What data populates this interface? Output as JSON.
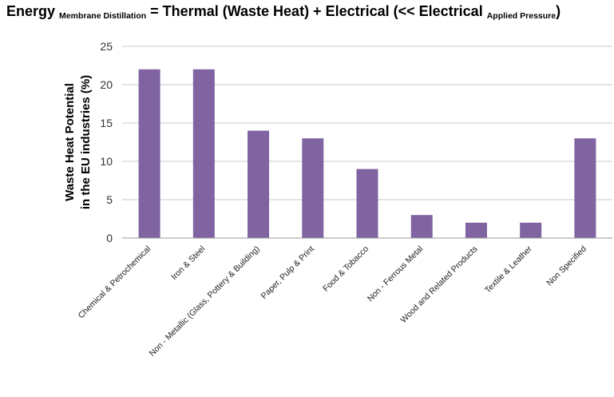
{
  "title": {
    "part1": "Energy",
    "sub1": "Membrane Distillation",
    "part2": "= Thermal (Waste Heat) + Electrical (<< Electrical",
    "sub2": "Applied Pressure",
    "part3": ")"
  },
  "chart_data": {
    "type": "bar",
    "categories": [
      "Chemical & Petrochemical",
      "Iron & Steel",
      "Non - Metallic (Glass, Pottery & Building)",
      "Paper, Pulp & Print",
      "Food & Tobacco",
      "Non - Ferrous Metal",
      "Wood and Related Products",
      "Textile & Leather",
      "Non Specified"
    ],
    "values": [
      22,
      22,
      14,
      13,
      9,
      3,
      2,
      2,
      13
    ],
    "ylabel_line1": "Waste Heat Potential",
    "ylabel_line2": "in the EU industries (%)",
    "xlabel": "",
    "ylim": [
      0,
      25
    ],
    "yticks": [
      0,
      5,
      10,
      15,
      20,
      25
    ],
    "grid": true,
    "bar_color": "#8064a2",
    "grid_color": "#c8c8c8"
  }
}
